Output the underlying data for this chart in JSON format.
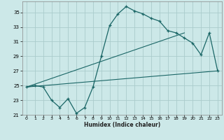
{
  "title": "",
  "xlabel": "Humidex (Indice chaleur)",
  "bg_color": "#cce8e8",
  "grid_color": "#aacccc",
  "line_color": "#1a6666",
  "xlim": [
    -0.5,
    23.5
  ],
  "ylim": [
    21,
    36.5
  ],
  "xticks": [
    0,
    1,
    2,
    3,
    4,
    5,
    6,
    7,
    8,
    9,
    10,
    11,
    12,
    13,
    14,
    15,
    16,
    17,
    18,
    19,
    20,
    21,
    22,
    23
  ],
  "yticks": [
    21,
    23,
    25,
    27,
    29,
    31,
    33,
    35
  ],
  "main_x": [
    0,
    1,
    2,
    3,
    4,
    5,
    6,
    7,
    8,
    9,
    10,
    11,
    12,
    13,
    14,
    15,
    16,
    17,
    18,
    19,
    20,
    21,
    22,
    23
  ],
  "main_y": [
    24.8,
    25.0,
    24.8,
    23.0,
    22.0,
    23.2,
    21.2,
    22.0,
    24.8,
    29.0,
    33.2,
    34.8,
    35.8,
    35.2,
    34.8,
    34.2,
    33.8,
    32.5,
    32.2,
    31.5,
    30.8,
    29.2,
    32.2,
    27.0
  ],
  "line2_x": [
    0,
    23
  ],
  "line2_y": [
    24.8,
    27.0
  ],
  "line3_x": [
    0,
    19
  ],
  "line3_y": [
    24.8,
    32.2
  ]
}
